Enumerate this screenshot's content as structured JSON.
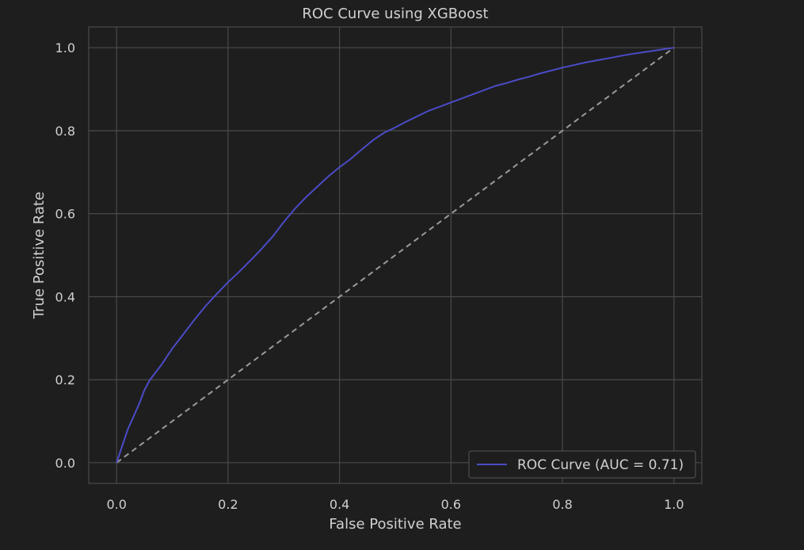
{
  "chart_data": {
    "type": "line",
    "title": "ROC Curve using XGBoost",
    "xlabel": "False Positive Rate",
    "ylabel": "True Positive Rate",
    "xlim": [
      -0.05,
      1.05
    ],
    "ylim": [
      -0.05,
      1.05
    ],
    "xticks": [
      0.0,
      0.2,
      0.4,
      0.6,
      0.8,
      1.0
    ],
    "yticks": [
      0.0,
      0.2,
      0.4,
      0.6,
      0.8,
      1.0
    ],
    "xtick_labels": [
      "0.0",
      "0.2",
      "0.4",
      "0.6",
      "0.8",
      "1.0"
    ],
    "ytick_labels": [
      "0.0",
      "0.2",
      "0.4",
      "0.6",
      "0.8",
      "1.0"
    ],
    "grid": true,
    "legend_position": "lower-right",
    "series": [
      {
        "name": "ROC Curve (AUC = 0.71)",
        "color": "#4b4bc8",
        "style": "solid",
        "x": [
          0.0,
          0.01,
          0.02,
          0.03,
          0.04,
          0.05,
          0.06,
          0.08,
          0.1,
          0.12,
          0.14,
          0.16,
          0.18,
          0.2,
          0.22,
          0.24,
          0.26,
          0.28,
          0.3,
          0.32,
          0.34,
          0.36,
          0.38,
          0.4,
          0.42,
          0.44,
          0.46,
          0.48,
          0.5,
          0.52,
          0.54,
          0.56,
          0.58,
          0.6,
          0.62,
          0.64,
          0.66,
          0.68,
          0.7,
          0.72,
          0.74,
          0.76,
          0.78,
          0.8,
          0.82,
          0.84,
          0.86,
          0.88,
          0.9,
          0.92,
          0.94,
          0.96,
          0.98,
          1.0
        ],
        "y": [
          0.0,
          0.04,
          0.08,
          0.11,
          0.14,
          0.175,
          0.2,
          0.235,
          0.275,
          0.31,
          0.345,
          0.378,
          0.407,
          0.435,
          0.46,
          0.487,
          0.515,
          0.545,
          0.58,
          0.612,
          0.64,
          0.665,
          0.69,
          0.712,
          0.732,
          0.755,
          0.777,
          0.795,
          0.808,
          0.822,
          0.835,
          0.848,
          0.858,
          0.868,
          0.878,
          0.888,
          0.898,
          0.908,
          0.915,
          0.923,
          0.93,
          0.938,
          0.945,
          0.952,
          0.958,
          0.964,
          0.969,
          0.974,
          0.979,
          0.984,
          0.988,
          0.992,
          0.996,
          1.0
        ]
      },
      {
        "name": "",
        "color": "#9a9a9a",
        "style": "dashed",
        "x": [
          0.0,
          1.0
        ],
        "y": [
          0.0,
          1.0
        ]
      }
    ],
    "legend": [
      {
        "label": "ROC Curve (AUC = 0.71)",
        "color": "#4b4bc8"
      }
    ]
  },
  "colors": {
    "background": "#1e1e1e",
    "axes_face": "#1e1e1e",
    "grid": "#4a4a4a",
    "spine": "#4a4a4a",
    "text": "#d0d0d0",
    "legend_face": "#1e1e1e",
    "legend_edge": "#555555"
  }
}
